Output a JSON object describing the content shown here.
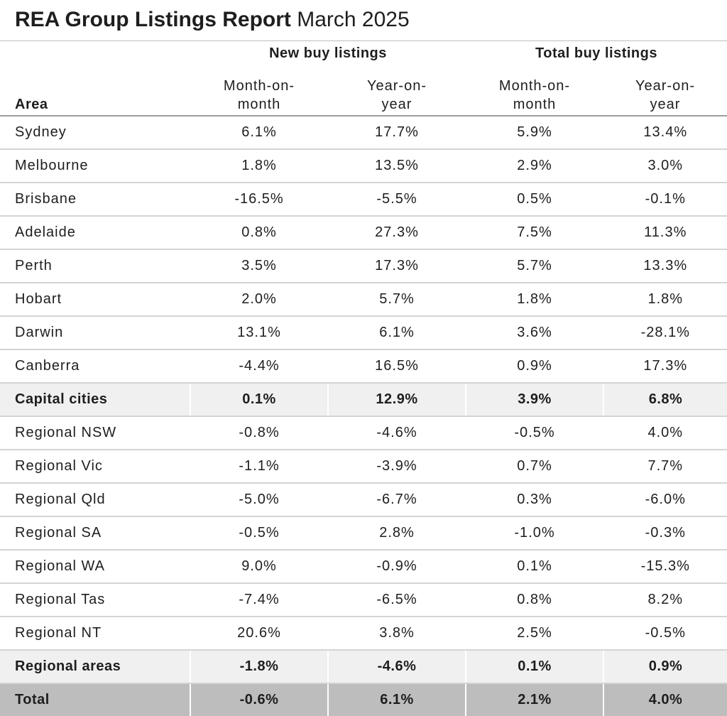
{
  "title": {
    "bold": "REA Group Listings Report",
    "light": "March 2025"
  },
  "header": {
    "groups": [
      "New buy listings",
      "Total buy listings"
    ],
    "area_label": "Area",
    "subheaders": [
      "Month-on-\nmonth",
      "Year-on-\nyear",
      "Month-on-\nmonth",
      "Year-on-\nyear"
    ]
  },
  "rows": [
    {
      "area": "Sydney",
      "values": [
        "6.1%",
        "17.7%",
        "5.9%",
        "13.4%"
      ]
    },
    {
      "area": "Melbourne",
      "values": [
        "1.8%",
        "13.5%",
        "2.9%",
        "3.0%"
      ]
    },
    {
      "area": "Brisbane",
      "values": [
        "-16.5%",
        "-5.5%",
        "0.5%",
        "-0.1%"
      ]
    },
    {
      "area": "Adelaide",
      "values": [
        "0.8%",
        "27.3%",
        "7.5%",
        "11.3%"
      ]
    },
    {
      "area": "Perth",
      "values": [
        "3.5%",
        "17.3%",
        "5.7%",
        "13.3%"
      ]
    },
    {
      "area": "Hobart",
      "values": [
        "2.0%",
        "5.7%",
        "1.8%",
        "1.8%"
      ]
    },
    {
      "area": "Darwin",
      "values": [
        "13.1%",
        "6.1%",
        "3.6%",
        "-28.1%"
      ]
    },
    {
      "area": "Canberra",
      "values": [
        "-4.4%",
        "16.5%",
        "0.9%",
        "17.3%"
      ]
    },
    {
      "area": "Capital cities",
      "values": [
        "0.1%",
        "12.9%",
        "3.9%",
        "6.8%"
      ],
      "kind": "subtotal"
    },
    {
      "area": "Regional NSW",
      "values": [
        "-0.8%",
        "-4.6%",
        "-0.5%",
        "4.0%"
      ]
    },
    {
      "area": "Regional Vic",
      "values": [
        "-1.1%",
        "-3.9%",
        "0.7%",
        "7.7%"
      ]
    },
    {
      "area": "Regional Qld",
      "values": [
        "-5.0%",
        "-6.7%",
        "0.3%",
        "-6.0%"
      ]
    },
    {
      "area": "Regional SA",
      "values": [
        "-0.5%",
        "2.8%",
        "-1.0%",
        "-0.3%"
      ]
    },
    {
      "area": "Regional WA",
      "values": [
        "9.0%",
        "-0.9%",
        "0.1%",
        "-15.3%"
      ]
    },
    {
      "area": "Regional Tas",
      "values": [
        "-7.4%",
        "-6.5%",
        "0.8%",
        "8.2%"
      ]
    },
    {
      "area": "Regional NT",
      "values": [
        "20.6%",
        "3.8%",
        "2.5%",
        "-0.5%"
      ]
    },
    {
      "area": "Regional areas",
      "values": [
        "-1.8%",
        "-4.6%",
        "0.1%",
        "0.9%"
      ],
      "kind": "subtotal"
    },
    {
      "area": "Total",
      "values": [
        "-0.6%",
        "6.1%",
        "2.1%",
        "4.0%"
      ],
      "kind": "total"
    }
  ],
  "colors": {
    "subtotal_bg": "#f0f0f0",
    "total_bg": "#bdbdbd",
    "row_divider": "#d4d4d4"
  }
}
